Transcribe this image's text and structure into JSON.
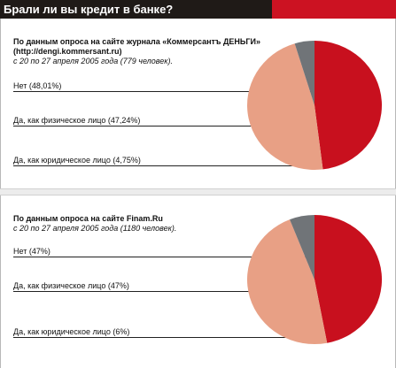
{
  "header": {
    "title": "Брали ли вы кредит в банке?"
  },
  "panels": [
    {
      "title_line1": "По данным опроса на сайте журнала «Коммерсантъ ДЕНЬГИ»",
      "title_line2": "(http://dengi.kommersant.ru)",
      "subtitle": "с 20 по 27 апреля 2005 года (779 человек).",
      "labels": [
        "Нет (48,01%)",
        "Да, как физическое лицо (47,24%)",
        "Да, как юридическое лицо (4,75%)"
      ]
    },
    {
      "title_line1": "По данным опроса на сайте Finam.Ru",
      "subtitle": "с 20 по 27 апреля 2005 года (1180 человек).",
      "labels": [
        "Нет (47%)",
        "Да, как физическое лицо (47%)",
        "Да, как юридическое лицо (6%)"
      ]
    }
  ],
  "chart_data": [
    {
      "type": "pie",
      "categories": [
        "Нет",
        "Да, как физическое лицо",
        "Да, как юридическое лицо"
      ],
      "values": [
        48.01,
        47.24,
        4.75
      ],
      "colors": [
        "#c8101e",
        "#e8a085",
        "#707478"
      ]
    },
    {
      "type": "pie",
      "categories": [
        "Нет",
        "Да, как физическое лицо",
        "Да, как юридическое лицо"
      ],
      "values": [
        47,
        47,
        6
      ],
      "colors": [
        "#c8101e",
        "#e8a085",
        "#707478"
      ]
    }
  ]
}
